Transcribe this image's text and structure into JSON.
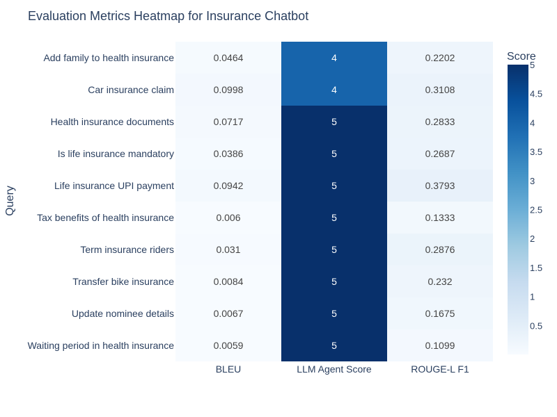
{
  "chart_data": {
    "type": "heatmap",
    "title": "Evaluation Metrics Heatmap for Insurance Chatbot",
    "xlabel": "",
    "ylabel": "Query",
    "x_categories": [
      "BLEU",
      "LLM Agent Score",
      "ROUGE-L F1"
    ],
    "y_categories": [
      "Add family to health insurance",
      "Car insurance claim",
      "Health insurance documents",
      "Is life insurance mandatory",
      "Life insurance UPI payment",
      "Tax benefits of health insurance",
      "Term insurance riders",
      "Transfer bike insurance",
      "Update nominee details",
      "Waiting period in health insurance"
    ],
    "values": [
      [
        0.0464,
        4,
        0.2202
      ],
      [
        0.0998,
        4,
        0.3108
      ],
      [
        0.0717,
        5,
        0.2833
      ],
      [
        0.0386,
        5,
        0.2687
      ],
      [
        0.0942,
        5,
        0.3793
      ],
      [
        0.006,
        5,
        0.1333
      ],
      [
        0.031,
        5,
        0.2876
      ],
      [
        0.0084,
        5,
        0.232
      ],
      [
        0.0067,
        5,
        0.1675
      ],
      [
        0.0059,
        5,
        0.1099
      ]
    ],
    "text": [
      [
        "0.0464",
        "4",
        "0.2202"
      ],
      [
        "0.0998",
        "4",
        "0.3108"
      ],
      [
        "0.0717",
        "5",
        "0.2833"
      ],
      [
        "0.0386",
        "5",
        "0.2687"
      ],
      [
        "0.0942",
        "5",
        "0.3793"
      ],
      [
        "0.006",
        "5",
        "0.1333"
      ],
      [
        "0.031",
        "5",
        "0.2876"
      ],
      [
        "0.0084",
        "5",
        "0.232"
      ],
      [
        "0.0067",
        "5",
        "0.1675"
      ],
      [
        "0.0059",
        "5",
        "0.1099"
      ]
    ],
    "colorscale": "Blues",
    "colorbar": {
      "title": "Score",
      "range": [
        0,
        5
      ],
      "ticks": [
        0.5,
        1,
        1.5,
        2,
        2.5,
        3,
        3.5,
        4,
        4.5,
        5
      ],
      "tick_labels": [
        "0.5",
        "1",
        "1.5",
        "2",
        "2.5",
        "3",
        "3.5",
        "4",
        "4.5",
        "5"
      ]
    }
  }
}
